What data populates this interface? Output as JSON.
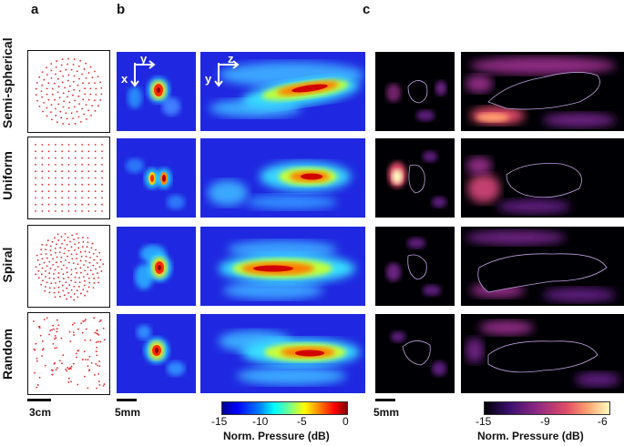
{
  "panels": {
    "a": "a",
    "b": "b",
    "c": "c"
  },
  "rows": [
    "Semi-spherical",
    "Uniform",
    "Spiral",
    "Random"
  ],
  "axes_xy": {
    "h": "y",
    "v": "x"
  },
  "axes_zy": {
    "h": "z",
    "v": "y"
  },
  "scalebars": {
    "a": "3cm",
    "b": "5mm",
    "c": "5mm"
  },
  "colorbar_jet": {
    "ticks": [
      "-15",
      "-10",
      "-5",
      "0"
    ],
    "label": "Norm. Pressure (dB)",
    "colors": [
      "#00008f",
      "#0000ff",
      "#00ffff",
      "#ffff00",
      "#ff0000",
      "#800000"
    ]
  },
  "colorbar_magma": {
    "ticks": [
      "-15",
      "-9",
      "-6"
    ],
    "label": "Norm. Pressure (dB)",
    "colors": [
      "#000004",
      "#3b0f70",
      "#8c2981",
      "#de4968",
      "#fe9f6d",
      "#fcfdbf"
    ]
  }
}
